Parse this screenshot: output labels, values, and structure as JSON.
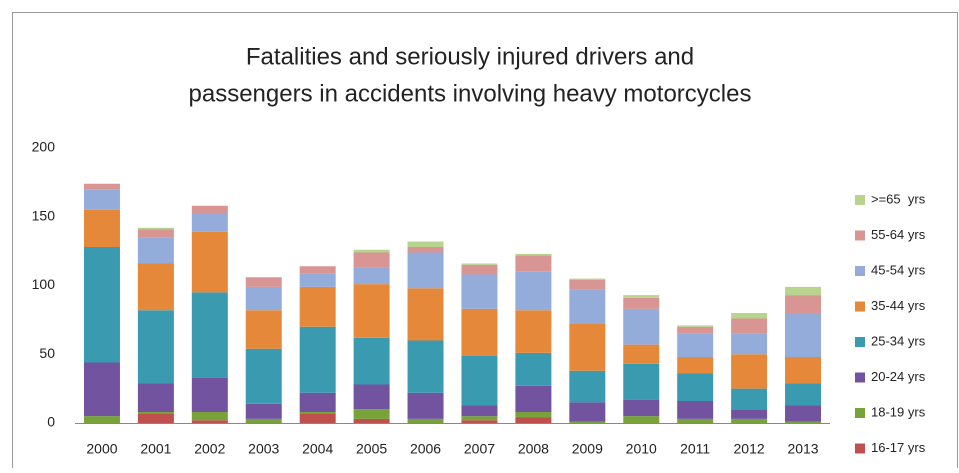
{
  "chart_data": {
    "type": "stacked_bar",
    "title": [
      "Fatalities and seriously injured drivers and",
      "passengers in accidents involving heavy motorcycles"
    ],
    "categories": [
      "2000",
      "2001",
      "2002",
      "2003",
      "2004",
      "2005",
      "2006",
      "2007",
      "2008",
      "2009",
      "2010",
      "2011",
      "2012",
      "2013"
    ],
    "series": [
      {
        "name": "16-17 yrs",
        "color": "#c0504d",
        "values": [
          0,
          7,
          2,
          0,
          7,
          3,
          0,
          2,
          4,
          0,
          0,
          0,
          0,
          0
        ]
      },
      {
        "name": "18-19 yrs",
        "color": "#77a33a",
        "values": [
          5,
          1,
          6,
          3,
          1,
          7,
          3,
          3,
          4,
          1,
          5,
          3,
          3,
          1
        ]
      },
      {
        "name": "20-24 yrs",
        "color": "#7153a0",
        "values": [
          39,
          21,
          25,
          11,
          14,
          18,
          19,
          8,
          19,
          14,
          12,
          13,
          7,
          12
        ]
      },
      {
        "name": "25-34 yrs",
        "color": "#3a9bb0",
        "values": [
          84,
          53,
          62,
          40,
          48,
          34,
          38,
          36,
          24,
          23,
          26,
          20,
          15,
          16
        ]
      },
      {
        "name": "35-44 yrs",
        "color": "#e5883a",
        "values": [
          27,
          34,
          44,
          28,
          29,
          39,
          38,
          34,
          31,
          34,
          14,
          12,
          25,
          19
        ]
      },
      {
        "name": "45-54 yrs",
        "color": "#94acd9",
        "values": [
          15,
          19,
          13,
          17,
          10,
          12,
          26,
          25,
          28,
          25,
          26,
          17,
          15,
          32
        ]
      },
      {
        "name": "55-64 yrs",
        "color": "#d99594",
        "values": [
          4,
          6,
          6,
          7,
          5,
          11,
          4,
          7,
          12,
          7,
          8,
          5,
          11,
          13
        ]
      },
      {
        "name": ">=65  yrs",
        "color": "#b9d48f",
        "values": [
          0,
          1,
          0,
          0,
          0,
          2,
          4,
          1,
          1,
          1,
          2,
          1,
          4,
          6
        ]
      }
    ],
    "ylim": [
      0,
      200
    ],
    "yticks": [
      0,
      50,
      100,
      150,
      200
    ],
    "grid": false,
    "legend": "right"
  }
}
